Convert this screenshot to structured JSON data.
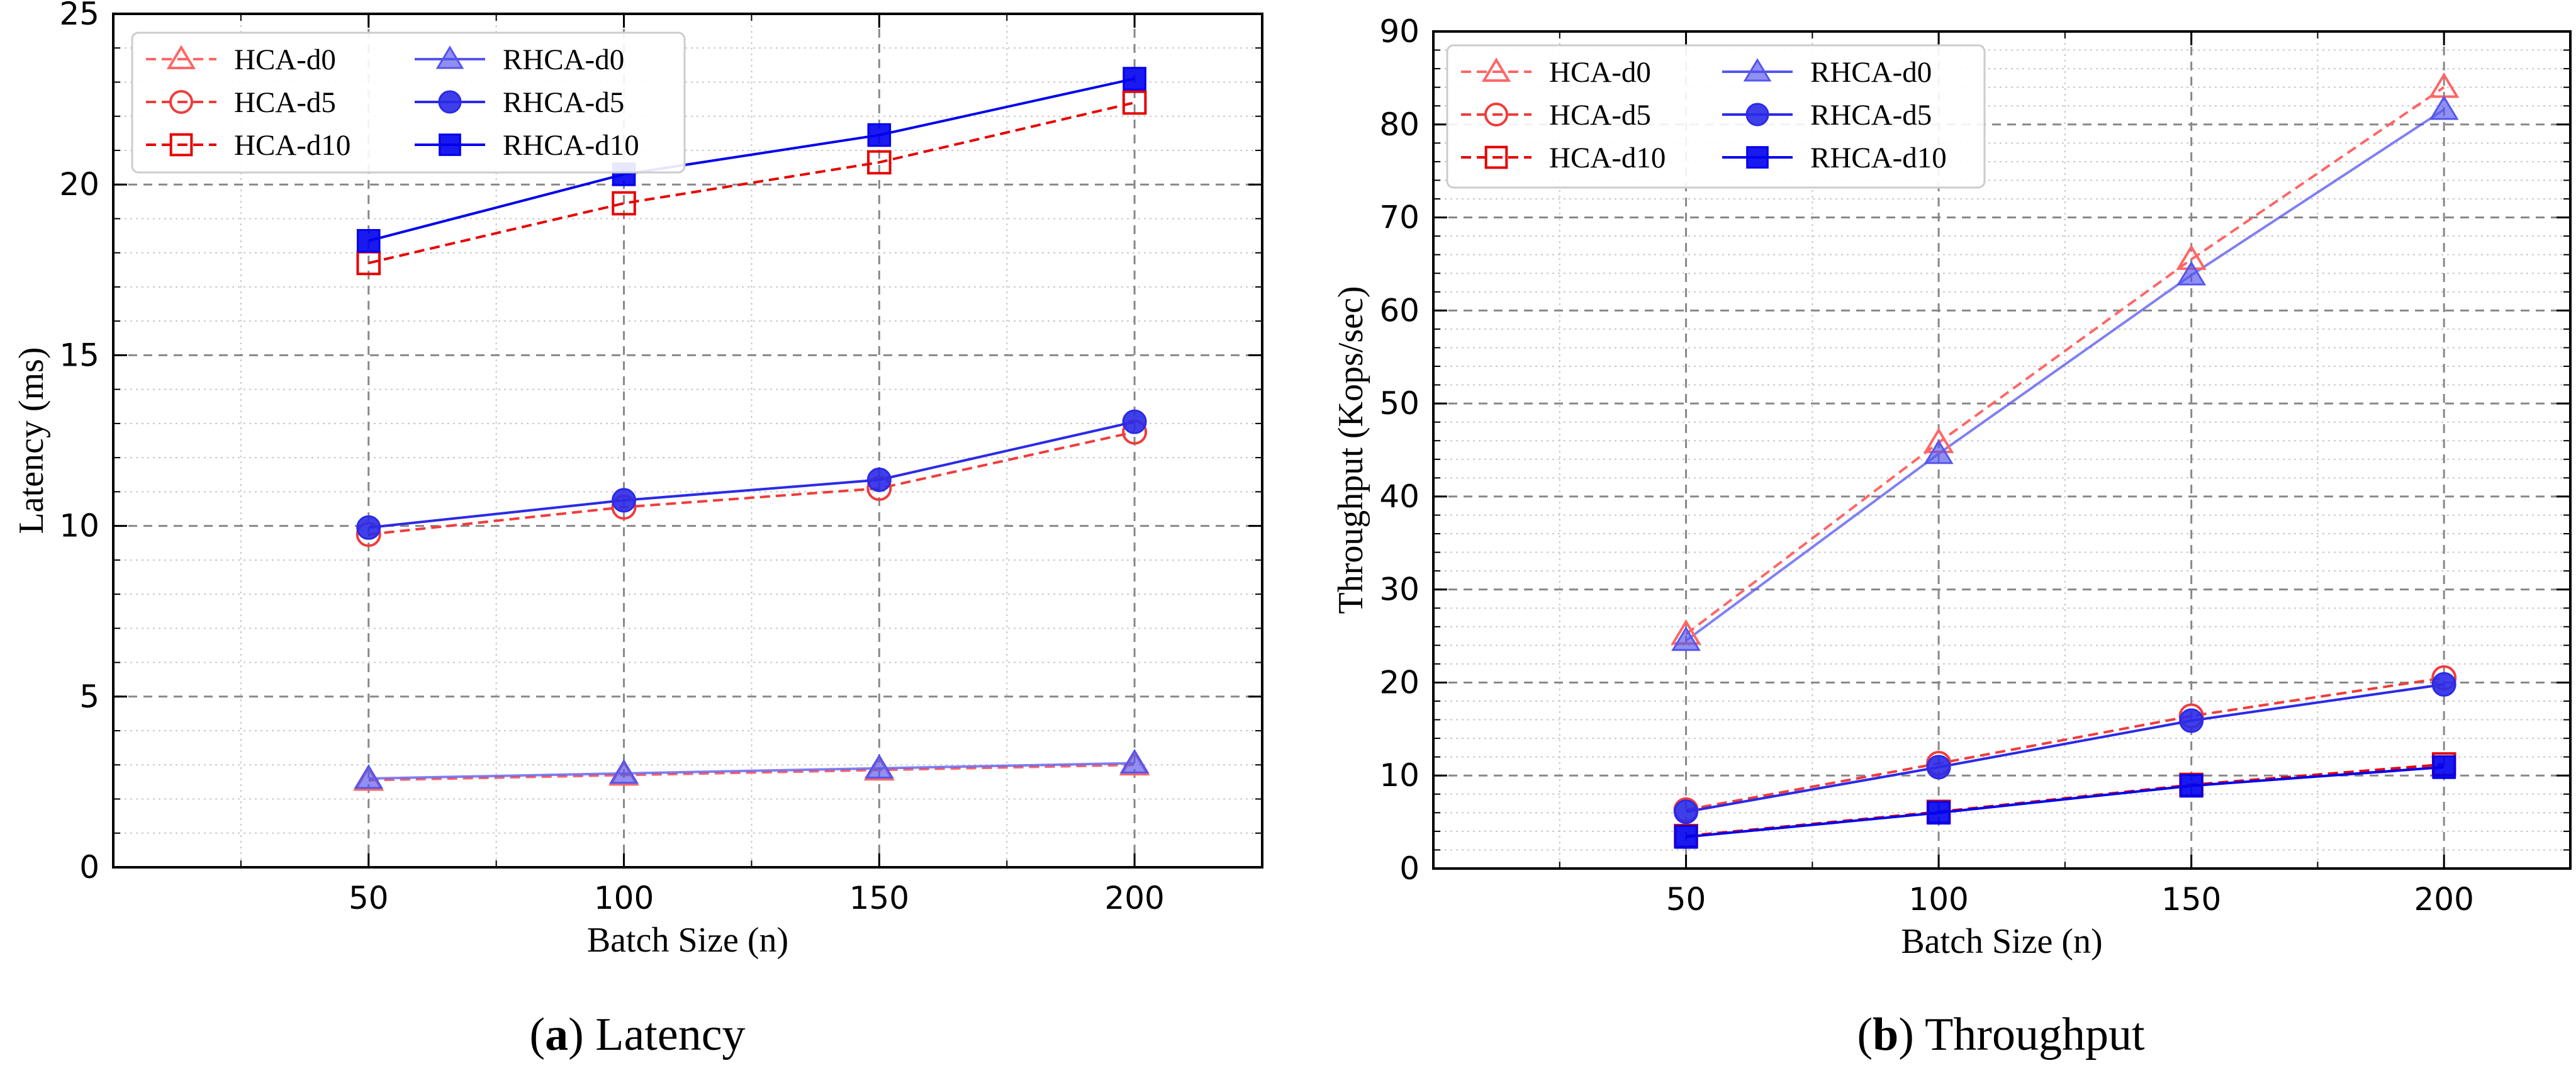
{
  "chart_data": [
    {
      "type": "line",
      "panel_letter": "a",
      "caption": "Latency",
      "xlabel": "Batch Size (n)",
      "ylabel": "Latency (ms)",
      "x": [
        50,
        100,
        150,
        200
      ],
      "xticks": [
        50,
        100,
        150,
        200
      ],
      "xlim": [
        0,
        225
      ],
      "yticks": [
        0,
        5,
        10,
        15,
        20,
        25
      ],
      "ylim": [
        0,
        25
      ],
      "grid": true,
      "legend_position": "top-left",
      "series": [
        {
          "name": "HCA-d0",
          "values": [
            2.55,
            2.7,
            2.85,
            3.0
          ],
          "color": "#ff6666",
          "marker": "triangle",
          "filled": false,
          "dashed": true
        },
        {
          "name": "HCA-d5",
          "values": [
            9.75,
            10.55,
            11.1,
            12.75
          ],
          "color": "#f03c3c",
          "marker": "circle",
          "filled": false,
          "dashed": true
        },
        {
          "name": "HCA-d10",
          "values": [
            17.7,
            19.45,
            20.65,
            22.4
          ],
          "color": "#e60000",
          "marker": "square",
          "filled": false,
          "dashed": true
        },
        {
          "name": "RHCA-d0",
          "values": [
            2.6,
            2.75,
            2.9,
            3.05
          ],
          "color": "#5555ee",
          "marker": "triangle",
          "filled": true,
          "dashed": false
        },
        {
          "name": "RHCA-d5",
          "values": [
            9.95,
            10.75,
            11.35,
            13.05
          ],
          "color": "#2a2ae8",
          "marker": "circle",
          "filled": true,
          "dashed": false
        },
        {
          "name": "RHCA-d10",
          "values": [
            18.35,
            20.3,
            21.45,
            23.1
          ],
          "color": "#0000ee",
          "marker": "square",
          "filled": true,
          "dashed": false
        }
      ]
    },
    {
      "type": "line",
      "panel_letter": "b",
      "caption": "Throughput",
      "xlabel": "Batch Size (n)",
      "ylabel": "Throughput (Kops/sec)",
      "x": [
        50,
        100,
        150,
        200
      ],
      "xticks": [
        50,
        100,
        150,
        200
      ],
      "xlim": [
        0,
        225
      ],
      "yticks": [
        0,
        10,
        20,
        30,
        40,
        50,
        60,
        70,
        80,
        90
      ],
      "ylim": [
        0,
        90
      ],
      "grid": true,
      "legend_position": "top-left",
      "series": [
        {
          "name": "HCA-d0",
          "values": [
            25.2,
            45.8,
            65.5,
            84.0
          ],
          "color": "#ff6666",
          "marker": "triangle",
          "filled": false,
          "dashed": true
        },
        {
          "name": "HCA-d5",
          "values": [
            6.3,
            11.3,
            16.4,
            20.5
          ],
          "color": "#f03c3c",
          "marker": "circle",
          "filled": false,
          "dashed": true
        },
        {
          "name": "HCA-d10",
          "values": [
            3.5,
            6.1,
            9.0,
            11.2
          ],
          "color": "#e60000",
          "marker": "square",
          "filled": false,
          "dashed": true
        },
        {
          "name": "RHCA-d0",
          "values": [
            24.5,
            44.6,
            63.8,
            81.6
          ],
          "color": "#5555ee",
          "marker": "triangle",
          "filled": true,
          "dashed": false
        },
        {
          "name": "RHCA-d5",
          "values": [
            6.1,
            10.9,
            15.9,
            19.8
          ],
          "color": "#2a2ae8",
          "marker": "circle",
          "filled": true,
          "dashed": false
        },
        {
          "name": "RHCA-d10",
          "values": [
            3.4,
            6.0,
            8.9,
            10.9
          ],
          "color": "#0000ee",
          "marker": "square",
          "filled": true,
          "dashed": false
        }
      ]
    }
  ]
}
